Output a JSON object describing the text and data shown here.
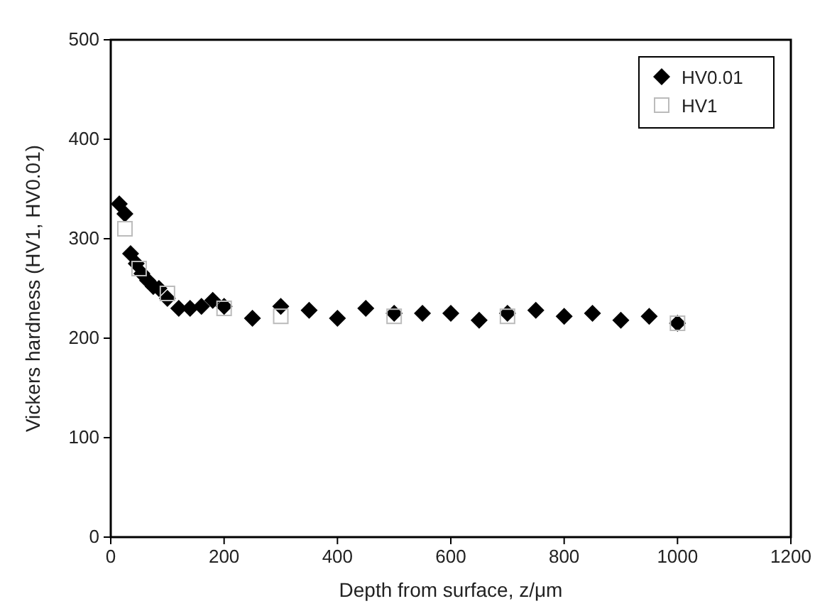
{
  "chart_data": {
    "type": "scatter",
    "xlabel": "Depth from surface, z/μm",
    "ylabel": "Vickers hardness (HV1, HV0.01)",
    "xlim": [
      0,
      1200
    ],
    "ylim": [
      0,
      500
    ],
    "xticks": [
      0,
      200,
      400,
      600,
      800,
      1000,
      1200
    ],
    "yticks": [
      0,
      100,
      200,
      300,
      400,
      500
    ],
    "legend": "top right",
    "grid": false,
    "series": [
      {
        "name": "HV0.01",
        "color": "#000000",
        "marker": "diamond",
        "x": [
          15,
          25,
          35,
          45,
          55,
          65,
          75,
          85,
          100,
          120,
          140,
          160,
          180,
          200,
          250,
          300,
          350,
          400,
          450,
          500,
          550,
          600,
          650,
          700,
          750,
          800,
          850,
          900,
          950,
          1000
        ],
        "values": [
          335,
          325,
          285,
          275,
          265,
          258,
          252,
          250,
          240,
          230,
          230,
          232,
          238,
          232,
          220,
          232,
          228,
          220,
          230,
          225,
          225,
          225,
          218,
          225,
          228,
          222,
          225,
          218,
          222,
          215
        ]
      },
      {
        "name": "HV1",
        "color": "#bbbbbb",
        "marker": "square",
        "x": [
          25,
          50,
          100,
          200,
          300,
          500,
          700,
          1000
        ],
        "values": [
          310,
          270,
          245,
          230,
          222,
          222,
          222,
          215
        ]
      }
    ]
  }
}
